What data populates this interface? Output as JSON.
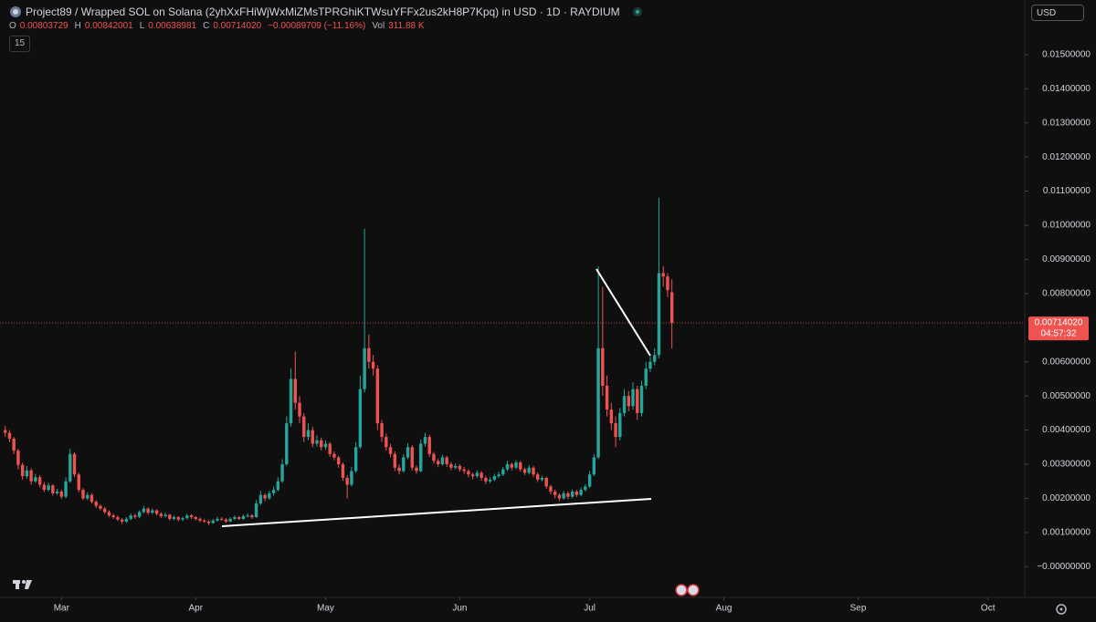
{
  "header": {
    "title": "Project89 / Wrapped SOL on Solana (2yhXxFHiWjWxMiZMsTPRGhiKTWsuYFFx2us2kH8P7Kpq) in USD · 1D · RAYDIUM",
    "ohlc_readout": [
      {
        "key": "O",
        "value": "0.00803729"
      },
      {
        "key": "H",
        "value": "0.00842001"
      },
      {
        "key": "L",
        "value": "0.00638981"
      },
      {
        "key": "C",
        "value": "0.00714020"
      }
    ],
    "change": "−0.00089709 (−11.16%)",
    "volume_key": "Vol",
    "volume": "311.88 K",
    "interval_badge": "15",
    "currency": "USD"
  },
  "chart_data": {
    "type": "candlestick",
    "up_color": "#26a69a",
    "down_color": "#ef5350",
    "ohlc": [
      [
        0.004,
        0.00412,
        0.0038,
        0.00392
      ],
      [
        0.00392,
        0.004,
        0.00365,
        0.00375
      ],
      [
        0.00375,
        0.0038,
        0.0033,
        0.0034
      ],
      [
        0.0034,
        0.00345,
        0.00285,
        0.00298
      ],
      [
        0.00298,
        0.00305,
        0.00255,
        0.00265
      ],
      [
        0.00265,
        0.00295,
        0.00258,
        0.00282
      ],
      [
        0.00282,
        0.00288,
        0.0024,
        0.0025
      ],
      [
        0.0025,
        0.00272,
        0.00245,
        0.00262
      ],
      [
        0.00262,
        0.00268,
        0.00232,
        0.0024
      ],
      [
        0.0024,
        0.00248,
        0.00218,
        0.00225
      ],
      [
        0.00225,
        0.00246,
        0.0022,
        0.00238
      ],
      [
        0.00238,
        0.00242,
        0.00208,
        0.00215
      ],
      [
        0.00215,
        0.00228,
        0.0021,
        0.0022
      ],
      [
        0.0022,
        0.00225,
        0.00198,
        0.00205
      ],
      [
        0.00205,
        0.00262,
        0.002,
        0.0025
      ],
      [
        0.0025,
        0.00345,
        0.00245,
        0.0033
      ],
      [
        0.0033,
        0.00335,
        0.00262,
        0.0027
      ],
      [
        0.0027,
        0.00275,
        0.00218,
        0.00225
      ],
      [
        0.00225,
        0.0023,
        0.00195,
        0.002
      ],
      [
        0.002,
        0.00218,
        0.00195,
        0.0021
      ],
      [
        0.0021,
        0.00215,
        0.00185,
        0.0019
      ],
      [
        0.0019,
        0.00195,
        0.00172,
        0.00178
      ],
      [
        0.00178,
        0.00182,
        0.00165,
        0.0017
      ],
      [
        0.0017,
        0.00175,
        0.00155,
        0.0016
      ],
      [
        0.0016,
        0.00165,
        0.00145,
        0.0015
      ],
      [
        0.0015,
        0.00155,
        0.0014,
        0.00145
      ],
      [
        0.00145,
        0.0015,
        0.00133,
        0.00138
      ],
      [
        0.00138,
        0.00142,
        0.00125,
        0.00132
      ],
      [
        0.00132,
        0.00145,
        0.00128,
        0.0014
      ],
      [
        0.0014,
        0.00156,
        0.00136,
        0.0015
      ],
      [
        0.0015,
        0.00155,
        0.0014,
        0.00146
      ],
      [
        0.00146,
        0.00165,
        0.00142,
        0.0016
      ],
      [
        0.0016,
        0.00178,
        0.00156,
        0.0017
      ],
      [
        0.0017,
        0.00174,
        0.00152,
        0.00158
      ],
      [
        0.00158,
        0.0017,
        0.00154,
        0.00165
      ],
      [
        0.00165,
        0.00168,
        0.0015,
        0.00155
      ],
      [
        0.00155,
        0.0016,
        0.00143,
        0.00148
      ],
      [
        0.00148,
        0.00158,
        0.00144,
        0.00152
      ],
      [
        0.00152,
        0.00155,
        0.00135,
        0.0014
      ],
      [
        0.0014,
        0.0015,
        0.00136,
        0.00145
      ],
      [
        0.00145,
        0.00148,
        0.00133,
        0.00138
      ],
      [
        0.00138,
        0.00146,
        0.00134,
        0.00142
      ],
      [
        0.00142,
        0.00155,
        0.00138,
        0.0015
      ],
      [
        0.0015,
        0.00154,
        0.0014,
        0.00145
      ],
      [
        0.00145,
        0.00148,
        0.00135,
        0.0014
      ],
      [
        0.0014,
        0.00144,
        0.0013,
        0.00135
      ],
      [
        0.00135,
        0.0014,
        0.00128,
        0.00132
      ],
      [
        0.00132,
        0.00136,
        0.00122,
        0.00128
      ],
      [
        0.00128,
        0.0014,
        0.00125,
        0.00135
      ],
      [
        0.00135,
        0.00146,
        0.00132,
        0.0014
      ],
      [
        0.0014,
        0.00145,
        0.00134,
        0.00138
      ],
      [
        0.00138,
        0.00142,
        0.00128,
        0.00132
      ],
      [
        0.00132,
        0.00145,
        0.0013,
        0.0014
      ],
      [
        0.0014,
        0.0015,
        0.00136,
        0.00145
      ],
      [
        0.00145,
        0.00149,
        0.00136,
        0.0014
      ],
      [
        0.0014,
        0.00153,
        0.00137,
        0.00148
      ],
      [
        0.00148,
        0.00156,
        0.00144,
        0.0015
      ],
      [
        0.0015,
        0.00154,
        0.0014,
        0.00145
      ],
      [
        0.00145,
        0.00195,
        0.00143,
        0.00185
      ],
      [
        0.00185,
        0.00222,
        0.0018,
        0.0021
      ],
      [
        0.0021,
        0.00215,
        0.00192,
        0.002
      ],
      [
        0.002,
        0.00222,
        0.00196,
        0.00215
      ],
      [
        0.00215,
        0.00235,
        0.00208,
        0.00225
      ],
      [
        0.00225,
        0.00262,
        0.0022,
        0.0025
      ],
      [
        0.0025,
        0.00315,
        0.00245,
        0.003
      ],
      [
        0.003,
        0.0044,
        0.00295,
        0.0042
      ],
      [
        0.0042,
        0.0058,
        0.0041,
        0.0055
      ],
      [
        0.0055,
        0.0063,
        0.0046,
        0.0048
      ],
      [
        0.0048,
        0.005,
        0.0042,
        0.0044
      ],
      [
        0.0044,
        0.0045,
        0.00365,
        0.0038
      ],
      [
        0.0038,
        0.0042,
        0.0037,
        0.004
      ],
      [
        0.004,
        0.0041,
        0.0035,
        0.0036
      ],
      [
        0.0036,
        0.00385,
        0.00352,
        0.0037
      ],
      [
        0.0037,
        0.00378,
        0.0034,
        0.0035
      ],
      [
        0.0035,
        0.0037,
        0.00342,
        0.0036
      ],
      [
        0.0036,
        0.00365,
        0.00322,
        0.0033
      ],
      [
        0.0033,
        0.00338,
        0.00312,
        0.0032
      ],
      [
        0.0032,
        0.00325,
        0.0029,
        0.003
      ],
      [
        0.003,
        0.00305,
        0.00252,
        0.0026
      ],
      [
        0.0026,
        0.00268,
        0.002,
        0.0024
      ],
      [
        0.0024,
        0.00292,
        0.00235,
        0.0028
      ],
      [
        0.0028,
        0.00365,
        0.00275,
        0.0035
      ],
      [
        0.0035,
        0.0056,
        0.00345,
        0.0052
      ],
      [
        0.0052,
        0.0099,
        0.0051,
        0.0064
      ],
      [
        0.0064,
        0.0068,
        0.0058,
        0.006
      ],
      [
        0.006,
        0.0062,
        0.0056,
        0.0058
      ],
      [
        0.0058,
        0.0059,
        0.004,
        0.0042
      ],
      [
        0.0042,
        0.0043,
        0.00365,
        0.0038
      ],
      [
        0.0038,
        0.0039,
        0.0034,
        0.0035
      ],
      [
        0.0035,
        0.0036,
        0.0032,
        0.0033
      ],
      [
        0.0033,
        0.00338,
        0.0028,
        0.0029
      ],
      [
        0.0029,
        0.003,
        0.0027,
        0.0028
      ],
      [
        0.0028,
        0.0033,
        0.00275,
        0.0032
      ],
      [
        0.0032,
        0.00362,
        0.00315,
        0.0035
      ],
      [
        0.0035,
        0.00356,
        0.00282,
        0.0029
      ],
      [
        0.0029,
        0.00296,
        0.00272,
        0.0028
      ],
      [
        0.0028,
        0.00372,
        0.00276,
        0.0036
      ],
      [
        0.0036,
        0.00392,
        0.00352,
        0.0038
      ],
      [
        0.0038,
        0.00386,
        0.00322,
        0.0033
      ],
      [
        0.0033,
        0.00336,
        0.00302,
        0.0031
      ],
      [
        0.0031,
        0.00316,
        0.00292,
        0.003
      ],
      [
        0.003,
        0.00328,
        0.00296,
        0.0032
      ],
      [
        0.0032,
        0.00325,
        0.00292,
        0.003
      ],
      [
        0.003,
        0.00306,
        0.00282,
        0.0029
      ],
      [
        0.0029,
        0.00302,
        0.00285,
        0.00295
      ],
      [
        0.00295,
        0.003,
        0.00278,
        0.00285
      ],
      [
        0.00285,
        0.00292,
        0.00272,
        0.0028
      ],
      [
        0.0028,
        0.00285,
        0.00262,
        0.0027
      ],
      [
        0.0027,
        0.00276,
        0.00256,
        0.00265
      ],
      [
        0.00265,
        0.00282,
        0.0026,
        0.00275
      ],
      [
        0.00275,
        0.0028,
        0.00252,
        0.0026
      ],
      [
        0.0026,
        0.00266,
        0.00242,
        0.0025
      ],
      [
        0.0025,
        0.00262,
        0.00245,
        0.00255
      ],
      [
        0.00255,
        0.00272,
        0.0025,
        0.00265
      ],
      [
        0.00265,
        0.00278,
        0.0026,
        0.0027
      ],
      [
        0.0027,
        0.00292,
        0.00265,
        0.00285
      ],
      [
        0.00285,
        0.0031,
        0.0028,
        0.003
      ],
      [
        0.003,
        0.00305,
        0.00282,
        0.0029
      ],
      [
        0.0029,
        0.00312,
        0.00285,
        0.00305
      ],
      [
        0.00305,
        0.0031,
        0.00278,
        0.00285
      ],
      [
        0.00285,
        0.0029,
        0.00268,
        0.00275
      ],
      [
        0.00275,
        0.00298,
        0.0027,
        0.0029
      ],
      [
        0.0029,
        0.00295,
        0.00262,
        0.0027
      ],
      [
        0.0027,
        0.00276,
        0.00248,
        0.00255
      ],
      [
        0.00255,
        0.00266,
        0.0025,
        0.0026
      ],
      [
        0.0026,
        0.00264,
        0.00228,
        0.00235
      ],
      [
        0.00235,
        0.0024,
        0.00212,
        0.0022
      ],
      [
        0.0022,
        0.00226,
        0.002,
        0.0021
      ],
      [
        0.0021,
        0.00215,
        0.00192,
        0.002
      ],
      [
        0.002,
        0.00222,
        0.00196,
        0.00215
      ],
      [
        0.00215,
        0.0022,
        0.00198,
        0.00205
      ],
      [
        0.00205,
        0.00226,
        0.002,
        0.0022
      ],
      [
        0.0022,
        0.00225,
        0.00204,
        0.0021
      ],
      [
        0.0021,
        0.00232,
        0.00206,
        0.00225
      ],
      [
        0.00225,
        0.00242,
        0.0022,
        0.00235
      ],
      [
        0.00235,
        0.0028,
        0.0023,
        0.0027
      ],
      [
        0.0027,
        0.0033,
        0.00265,
        0.0032
      ],
      [
        0.0032,
        0.0088,
        0.00315,
        0.0064
      ],
      [
        0.0064,
        0.0082,
        0.005,
        0.0053
      ],
      [
        0.0053,
        0.0056,
        0.0044,
        0.0046
      ],
      [
        0.0046,
        0.0048,
        0.004,
        0.0042
      ],
      [
        0.0042,
        0.0044,
        0.0035,
        0.0038
      ],
      [
        0.0038,
        0.00465,
        0.0037,
        0.0045
      ],
      [
        0.0045,
        0.0052,
        0.0044,
        0.005
      ],
      [
        0.005,
        0.00515,
        0.00455,
        0.0047
      ],
      [
        0.0047,
        0.0054,
        0.0046,
        0.0052
      ],
      [
        0.0052,
        0.0053,
        0.0043,
        0.0045
      ],
      [
        0.0045,
        0.00545,
        0.0044,
        0.0053
      ],
      [
        0.0053,
        0.006,
        0.0052,
        0.0058
      ],
      [
        0.0058,
        0.00615,
        0.0057,
        0.006
      ],
      [
        0.006,
        0.0064,
        0.0059,
        0.0062
      ],
      [
        0.0062,
        0.0108,
        0.0061,
        0.0086
      ],
      [
        0.0086,
        0.0088,
        0.0082,
        0.0085
      ],
      [
        0.0085,
        0.0086,
        0.0079,
        0.0081
      ],
      [
        0.00803729,
        0.00842001,
        0.00638981,
        0.0071402
      ]
    ],
    "ylim": [
      -0.0009,
      0.0166
    ],
    "yticks": [
      {
        "value": 0.015,
        "label": "0.01500000"
      },
      {
        "value": 0.014,
        "label": "0.01400000"
      },
      {
        "value": 0.013,
        "label": "0.01300000"
      },
      {
        "value": 0.012,
        "label": "0.01200000"
      },
      {
        "value": 0.011,
        "label": "0.01100000"
      },
      {
        "value": 0.01,
        "label": "0.01000000"
      },
      {
        "value": 0.009,
        "label": "0.00900000"
      },
      {
        "value": 0.008,
        "label": "0.00800000"
      },
      {
        "value": 0.006,
        "label": "0.00600000"
      },
      {
        "value": 0.005,
        "label": "0.00500000"
      },
      {
        "value": 0.004,
        "label": "0.00400000"
      },
      {
        "value": 0.003,
        "label": "0.00300000"
      },
      {
        "value": 0.002,
        "label": "0.00200000"
      },
      {
        "value": 0.001,
        "label": "0.00100000"
      },
      {
        "value": 0,
        "label": "−0.00000000"
      }
    ],
    "xlim": [
      -1.2,
      235.5
    ],
    "xticks": [
      {
        "value": 13,
        "label": "Mar"
      },
      {
        "value": 44,
        "label": "Apr"
      },
      {
        "value": 74,
        "label": "May"
      },
      {
        "value": 105,
        "label": "Jun"
      },
      {
        "value": 135,
        "label": "Jul"
      },
      {
        "value": 166,
        "label": "Aug"
      },
      {
        "value": 197,
        "label": "Sep"
      },
      {
        "value": 227,
        "label": "Oct"
      }
    ],
    "current_price_label": "0.00714020",
    "countdown": "04:57:32"
  }
}
